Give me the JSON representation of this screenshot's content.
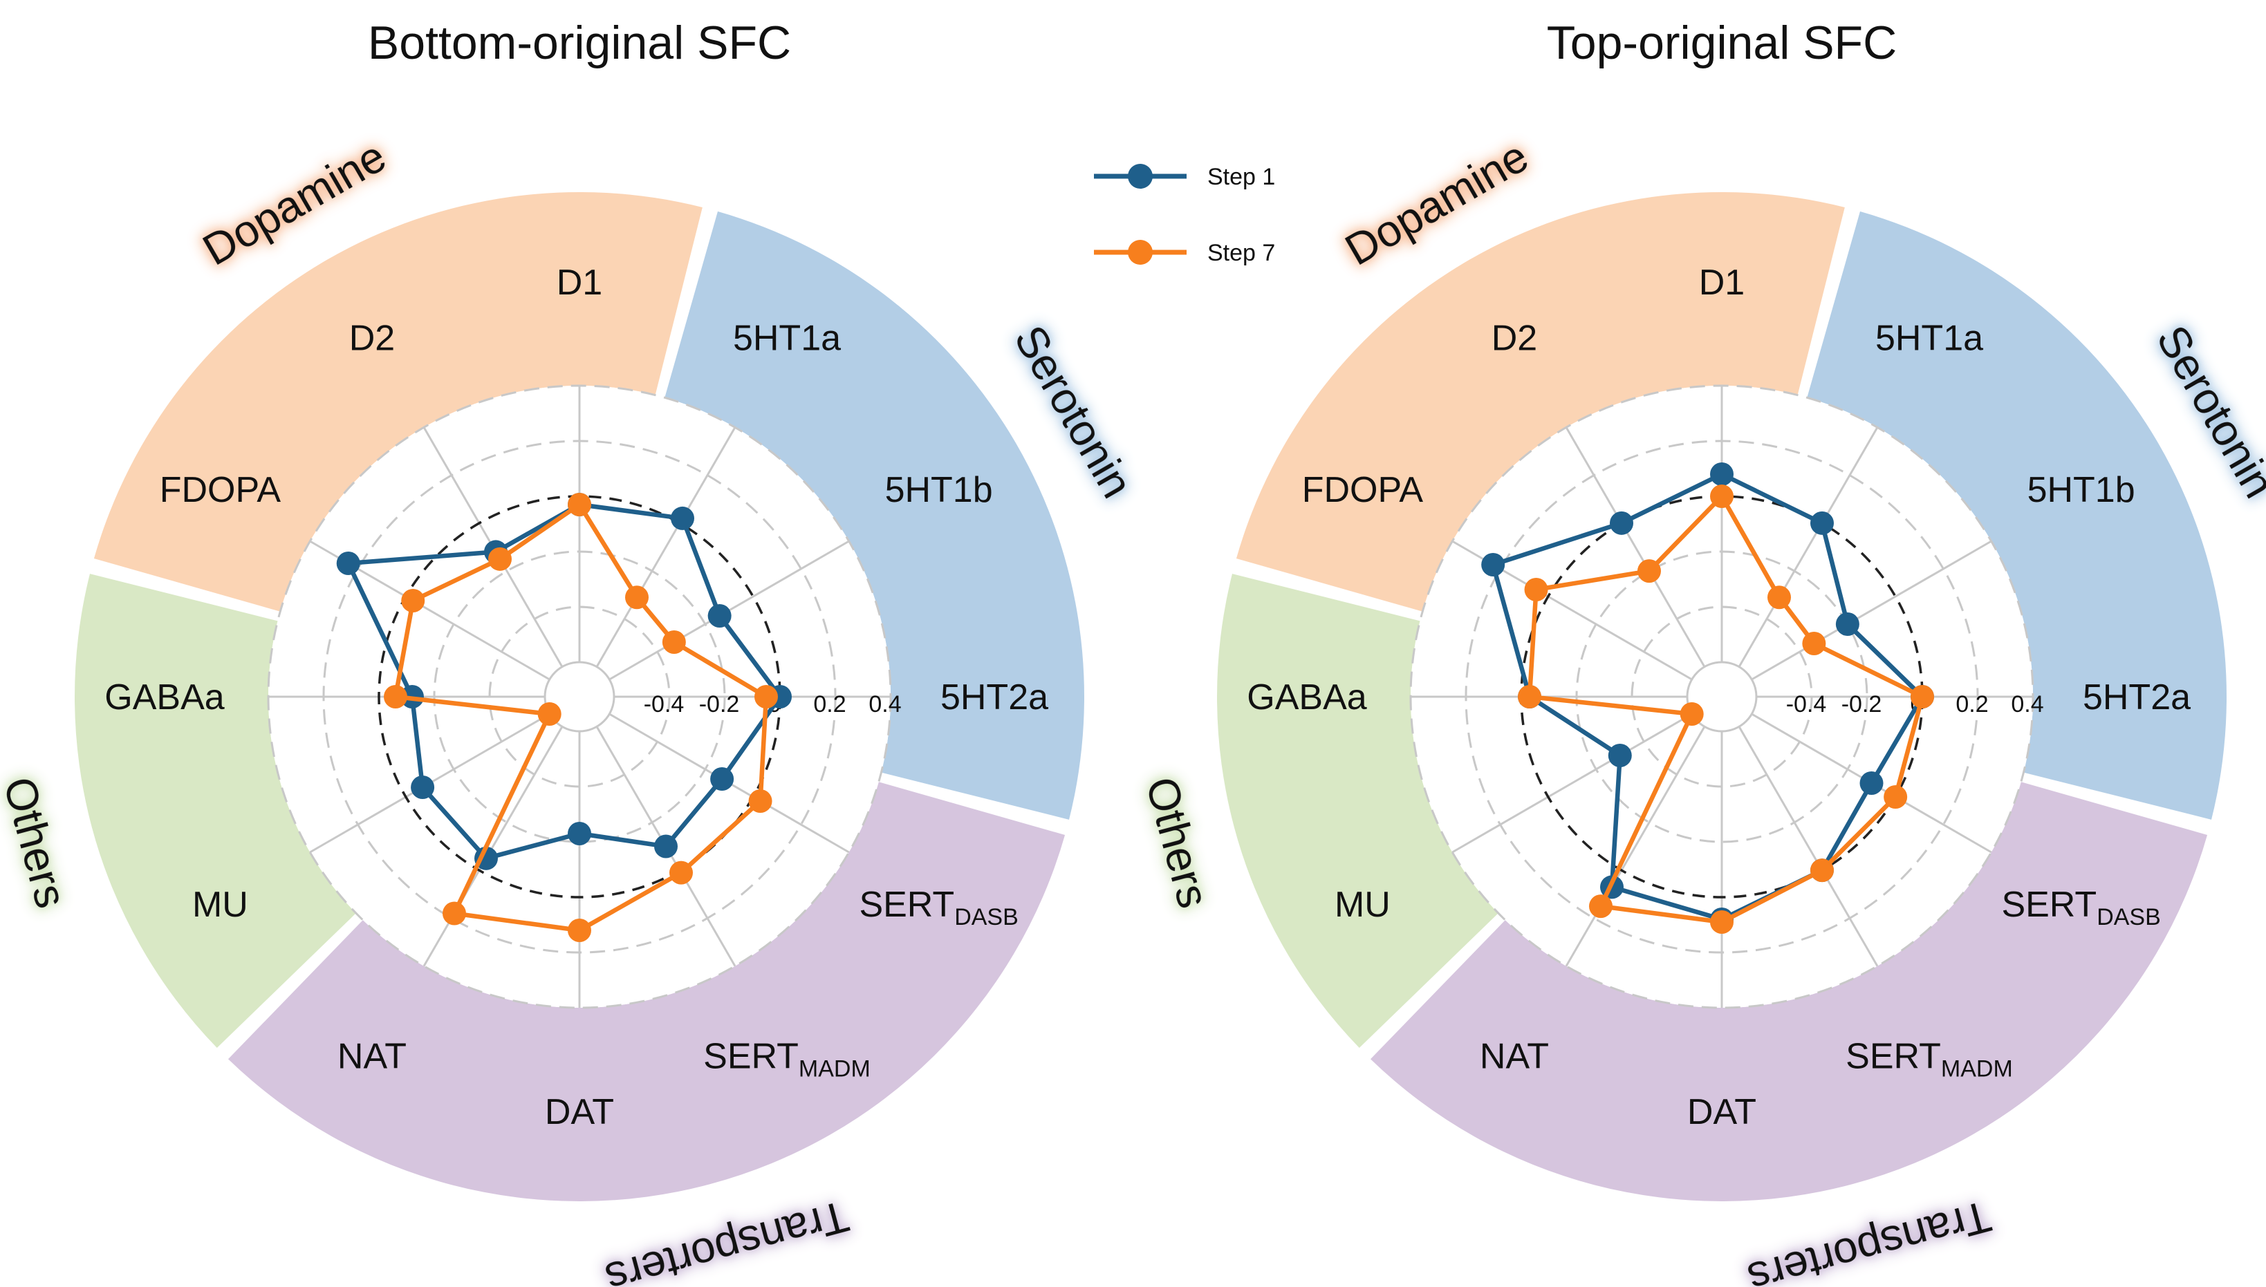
{
  "figure": {
    "legend": [
      {
        "label": "Step 1",
        "color": "#1f5f8b"
      },
      {
        "label": "Step 7",
        "color": "#f77f1d"
      }
    ],
    "group_colors": {
      "Dopamine": "#fbd4b4",
      "Serotonin": "#b3cee6",
      "Transporters": "#d6c5de",
      "Others": "#d9e8c5"
    },
    "group_label_glow": {
      "Dopamine": "#f7b48a",
      "Serotonin": "#9cc0e0",
      "Transporters": "#c3b0d2",
      "Others": "#c8dfae"
    },
    "reference_circle_value": 0
  },
  "chart_data": [
    {
      "type": "radar",
      "title": "Bottom-original SFC",
      "categories": [
        "D1",
        "5HT1a",
        "5HT1b",
        "5HT2a",
        "SERT_DASB",
        "SERT_MADM",
        "DAT",
        "NAT",
        "MU",
        "GABAa",
        "FDOPA",
        "D2"
      ],
      "category_labels": [
        {
          "main": "D1",
          "sub": ""
        },
        {
          "main": "5HT1a",
          "sub": ""
        },
        {
          "main": "5HT1b",
          "sub": ""
        },
        {
          "main": "5HT2a",
          "sub": ""
        },
        {
          "main": "SERT",
          "sub": "DASB"
        },
        {
          "main": "SERT",
          "sub": "MADM"
        },
        {
          "main": "DAT",
          "sub": ""
        },
        {
          "main": "NAT",
          "sub": ""
        },
        {
          "main": "MU",
          "sub": ""
        },
        {
          "main": "GABAa",
          "sub": ""
        },
        {
          "main": "FDOPA",
          "sub": ""
        },
        {
          "main": "D2",
          "sub": ""
        }
      ],
      "groups": [
        {
          "name": "Dopamine",
          "categories": [
            "FDOPA",
            "D2",
            "D1"
          ]
        },
        {
          "name": "Serotonin",
          "categories": [
            "5HT1a",
            "5HT1b",
            "5HT2a"
          ]
        },
        {
          "name": "Transporters",
          "categories": [
            "SERT_DASB",
            "SERT_MADM",
            "DAT",
            "NAT"
          ]
        },
        {
          "name": "Others",
          "categories": [
            "MU",
            "GABAa"
          ]
        }
      ],
      "radial_range": [
        -0.6,
        0.4
      ],
      "radial_ticks": [
        "-0.4",
        "-0.2",
        "0",
        "0.2",
        "0.4"
      ],
      "series": [
        {
          "name": "Step 1",
          "values": [
            -0.03,
            0.02,
            -0.14,
            0.0,
            -0.13,
            -0.1,
            -0.23,
            -0.05,
            -0.07,
            -0.12,
            0.24,
            -0.12
          ]
        },
        {
          "name": "Step 7",
          "values": [
            -0.03,
            -0.31,
            -0.33,
            -0.05,
            0.03,
            0.01,
            0.12,
            0.18,
            -0.6,
            -0.06,
            -0.03,
            -0.15
          ]
        }
      ]
    },
    {
      "type": "radar",
      "title": "Top-original SFC",
      "categories": [
        "D1",
        "5HT1a",
        "5HT1b",
        "5HT2a",
        "SERT_DASB",
        "SERT_MADM",
        "DAT",
        "NAT",
        "MU",
        "GABAa",
        "FDOPA",
        "D2"
      ],
      "category_labels": [
        {
          "main": "D1",
          "sub": ""
        },
        {
          "main": "5HT1a",
          "sub": ""
        },
        {
          "main": "5HT1b",
          "sub": ""
        },
        {
          "main": "5HT2a",
          "sub": ""
        },
        {
          "main": "SERT",
          "sub": "DASB"
        },
        {
          "main": "SERT",
          "sub": "MADM"
        },
        {
          "main": "DAT",
          "sub": ""
        },
        {
          "main": "NAT",
          "sub": ""
        },
        {
          "main": "MU",
          "sub": ""
        },
        {
          "main": "GABAa",
          "sub": ""
        },
        {
          "main": "FDOPA",
          "sub": ""
        },
        {
          "main": "D2",
          "sub": ""
        }
      ],
      "groups": [
        {
          "name": "Dopamine",
          "categories": [
            "FDOPA",
            "D2",
            "D1"
          ]
        },
        {
          "name": "Serotonin",
          "categories": [
            "5HT1a",
            "5HT1b",
            "5HT2a"
          ]
        },
        {
          "name": "Transporters",
          "categories": [
            "SERT_DASB",
            "SERT_MADM",
            "DAT",
            "NAT"
          ]
        },
        {
          "name": "Others",
          "categories": [
            "MU",
            "GABAa"
          ]
        }
      ],
      "radial_range": [
        -0.6,
        0.4
      ],
      "radial_ticks": [
        "-0.4",
        "-0.2",
        "0",
        "0.2",
        "0.4"
      ],
      "series": [
        {
          "name": "Step 1",
          "values": [
            0.08,
            0.0,
            -0.2,
            0.0,
            -0.1,
            0.0,
            0.08,
            0.07,
            -0.3,
            -0.03,
            0.23,
            0.0
          ]
        },
        {
          "name": "Step 7",
          "values": [
            0.0,
            -0.31,
            -0.34,
            0.0,
            0.0,
            0.0,
            0.09,
            0.15,
            -0.6,
            -0.03,
            0.05,
            -0.2
          ]
        }
      ]
    }
  ]
}
